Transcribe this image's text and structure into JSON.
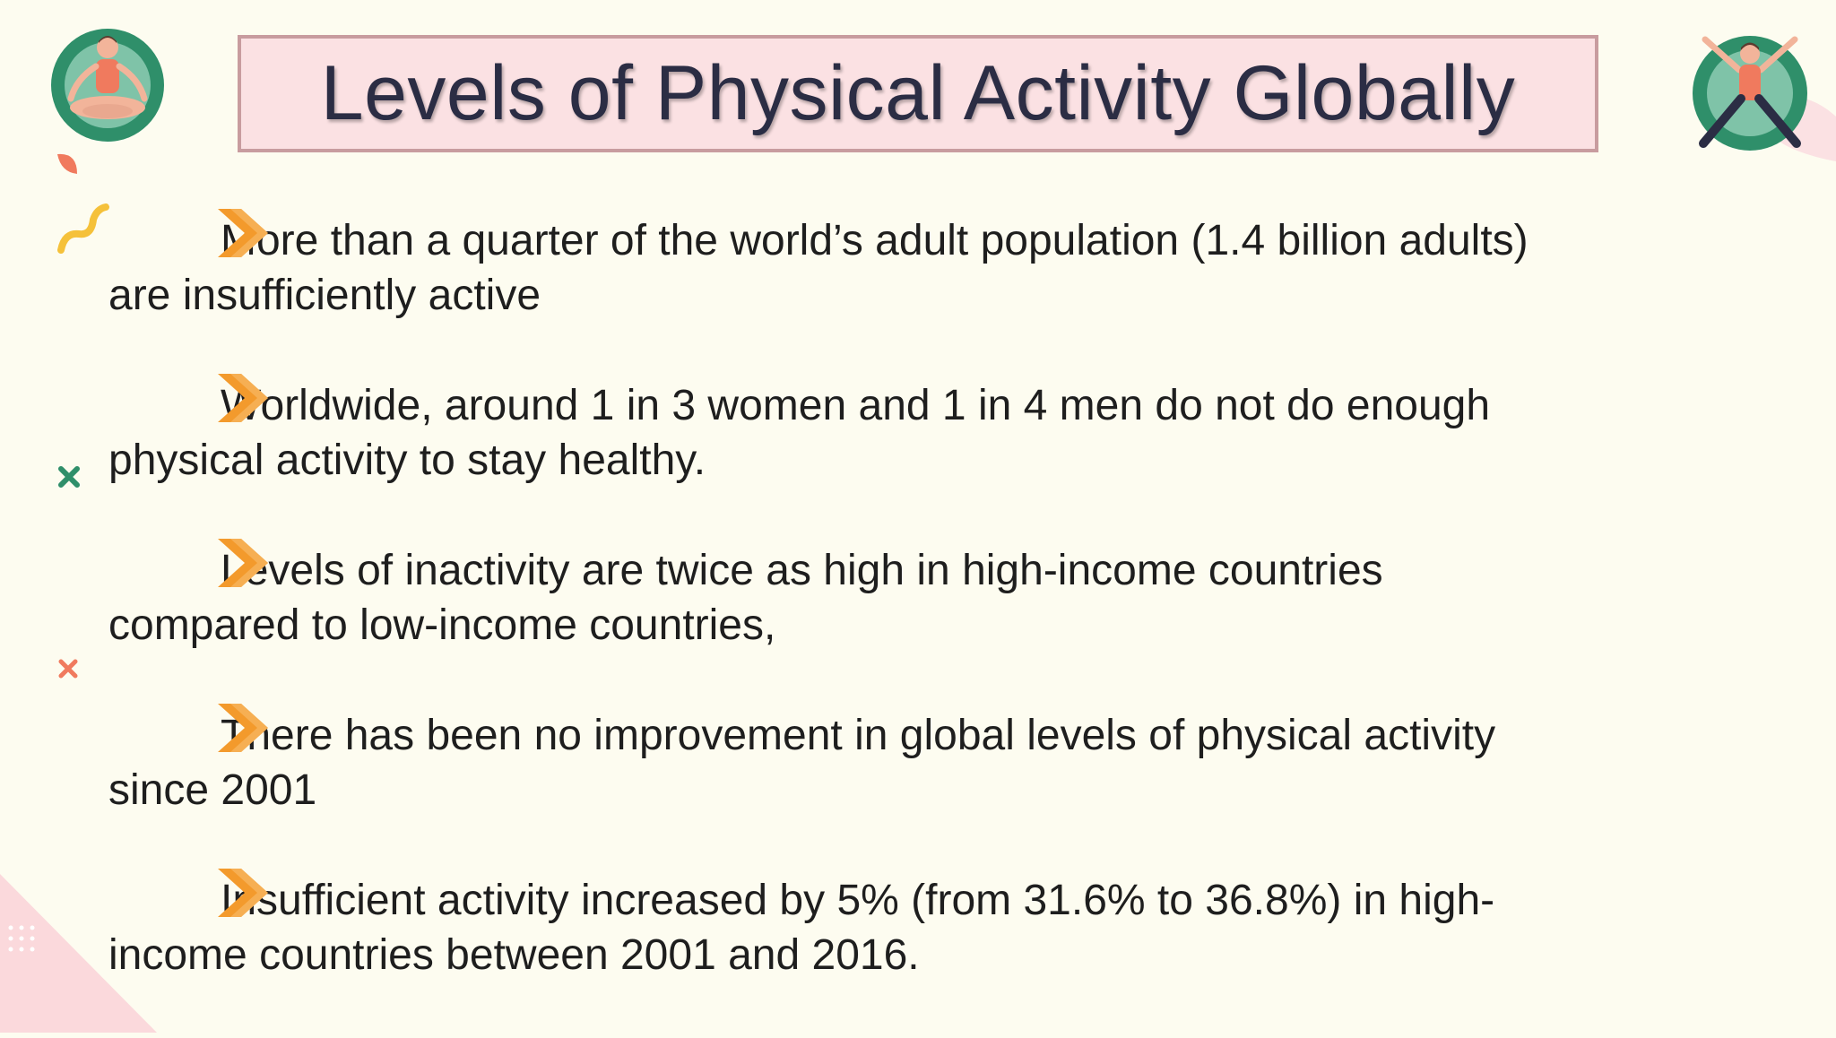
{
  "slide": {
    "title": "Levels of Physical Activity Globally",
    "bullets": [
      {
        "line1": "More than a quarter of the world’s adult population (1.4 billion adults)",
        "line2": "are insufficiently active"
      },
      {
        "line1": "Worldwide, around 1 in 3 women and 1 in 4 men do not do enough",
        "line2": "physical activity to stay healthy."
      },
      {
        "line1": "Levels of inactivity are twice as high in high-income countries",
        "line2": "compared to low-income countries,"
      },
      {
        "line1": "There has been no improvement in global levels of physical activity",
        "line2": "since 2001"
      },
      {
        "line1": "Insufficient activity increased by 5% (from 31.6% to 36.8%) in high-",
        "line2": "income countries between 2001 and 2016."
      }
    ]
  },
  "icons": {
    "bullet": "chevron-right-icon",
    "left_figure": "meditation-person-icon",
    "right_figure": "star-jump-person-icon"
  },
  "colors": {
    "background": "#fdfcf0",
    "title_fill": "#fbe1e3",
    "title_border": "#c89c9f",
    "title_text": "#2b2d44",
    "arrow_orange": "#f39a2c",
    "green": "#2f8f6a",
    "coral": "#f07a5e",
    "yellow": "#f5c13a"
  }
}
